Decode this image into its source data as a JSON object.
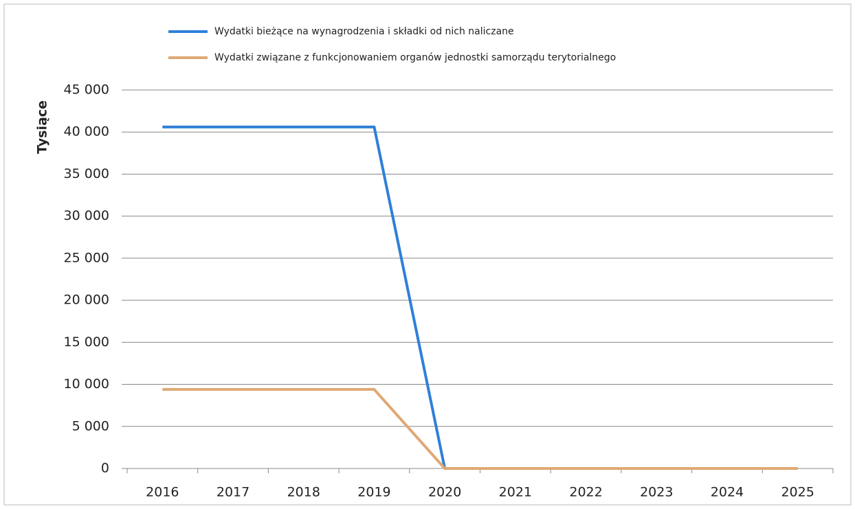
{
  "chart_data": {
    "type": "line",
    "ylabel": "Tysiące",
    "categories": [
      "2016",
      "2017",
      "2018",
      "2019",
      "2020",
      "2021",
      "2022",
      "2023",
      "2024",
      "2025"
    ],
    "series": [
      {
        "name": "Wydatki bieżące na wynagrodzenia i składki od nich naliczane",
        "color": "#2f80d8",
        "values": [
          40600,
          40600,
          40600,
          40600,
          0,
          0,
          0,
          0,
          0,
          0
        ]
      },
      {
        "name": "Wydatki związane z funkcjonowaniem organów jednostki samorządu terytorialnego",
        "color": "#dfa874",
        "values": [
          9400,
          9400,
          9400,
          9400,
          0,
          0,
          0,
          0,
          0,
          0
        ]
      }
    ],
    "ylim": [
      0,
      45000
    ],
    "yticks": [
      0,
      {
        "value": 5000,
        "label": "5 000"
      },
      {
        "value": 10000,
        "label": "10 000"
      },
      {
        "value": 15000,
        "label": "15 000"
      },
      {
        "value": 20000,
        "label": "20 000"
      },
      {
        "value": 25000,
        "label": "25 000"
      },
      {
        "value": 30000,
        "label": "30 000"
      },
      {
        "value": 35000,
        "label": "35 000"
      },
      {
        "value": 40000,
        "label": "40 000"
      },
      {
        "value": 45000,
        "label": "45 000"
      }
    ],
    "grid": true,
    "legend": "top"
  }
}
